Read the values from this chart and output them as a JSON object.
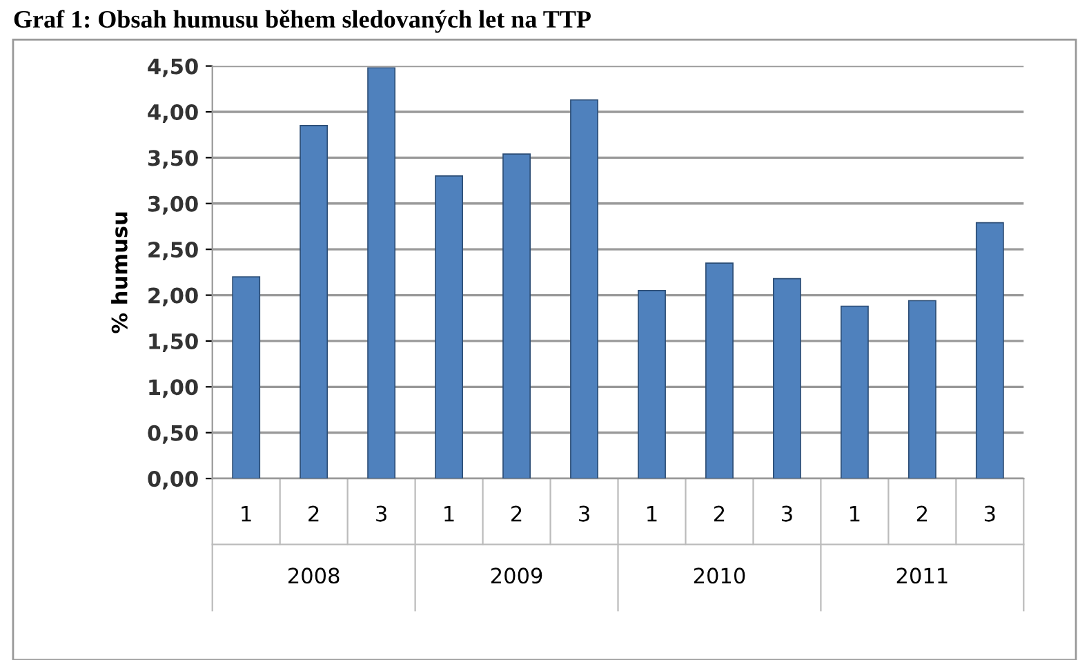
{
  "chart_data": {
    "type": "bar",
    "title": "Graf 1: Obsah humusu během sledovaných let na TTP",
    "ylabel": "% humusu",
    "categories": [
      "1",
      "2",
      "3",
      "1",
      "2",
      "3",
      "1",
      "2",
      "3",
      "1",
      "2",
      "3"
    ],
    "values": [
      2.2,
      3.85,
      4.48,
      3.3,
      3.54,
      4.13,
      2.05,
      2.35,
      2.18,
      1.88,
      1.94,
      2.79
    ],
    "color": "#4f81bd",
    "ylim": [
      0,
      4.5
    ],
    "yticks": [
      {
        "value": 0,
        "label": "0,00"
      },
      {
        "value": 0.5,
        "label": "0,50"
      },
      {
        "value": 1,
        "label": "1,00"
      },
      {
        "value": 1.5,
        "label": "1,50"
      },
      {
        "value": 2,
        "label": "2,00"
      },
      {
        "value": 2.5,
        "label": "2,50"
      },
      {
        "value": 3,
        "label": "3,00"
      },
      {
        "value": 3.5,
        "label": "3,50"
      },
      {
        "value": 4,
        "label": "4,00"
      },
      {
        "value": 4.5,
        "label": "4,50"
      }
    ],
    "grid": "y",
    "annotations": [
      "2008",
      "2009",
      "2010",
      "2011"
    ]
  }
}
